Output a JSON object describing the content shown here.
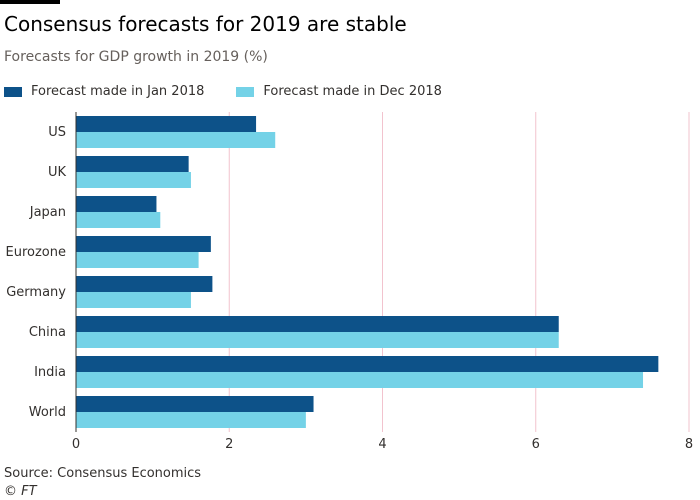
{
  "header": {
    "title": "Consensus forecasts for 2019 are stable",
    "subtitle": "Forecasts for GDP growth in 2019 (%)"
  },
  "footer": {
    "source": "Source: Consensus Economics",
    "credit": "© FT"
  },
  "colors": {
    "series_jan": "#0d5289",
    "series_dec": "#74d2e7",
    "gridline": "#f2c3ce",
    "axis": "#33302e",
    "text": "#33302e"
  },
  "chart_data": {
    "type": "bar",
    "orientation": "horizontal",
    "title": "Consensus forecasts for 2019 are stable",
    "subtitle": "Forecasts for GDP growth in 2019 (%)",
    "xlabel": "",
    "ylabel": "",
    "categories": [
      "US",
      "UK",
      "Japan",
      "Eurozone",
      "Germany",
      "China",
      "India",
      "World"
    ],
    "series": [
      {
        "name": "Forecast made in Jan 2018",
        "values": [
          2.35,
          1.47,
          1.05,
          1.76,
          1.78,
          6.3,
          7.6,
          3.1
        ]
      },
      {
        "name": "Forecast made in Dec 2018",
        "values": [
          2.6,
          1.5,
          1.1,
          1.6,
          1.5,
          6.3,
          7.4,
          3.0
        ]
      }
    ],
    "xlim": [
      0,
      8
    ],
    "xticks": [
      0,
      2,
      4,
      6,
      8
    ],
    "grid": true,
    "legend_position": "top-left"
  }
}
